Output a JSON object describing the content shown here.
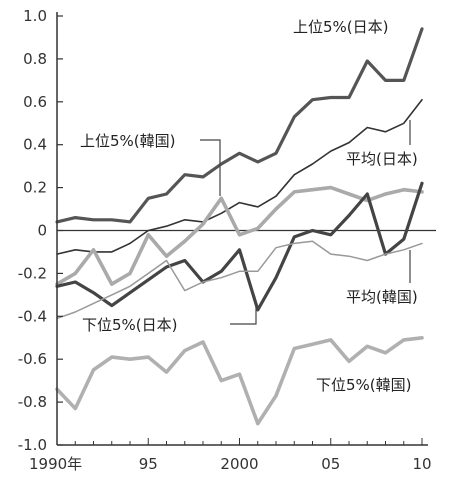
{
  "chart_data": {
    "type": "line",
    "title": "",
    "xlabel": "",
    "ylabel": "",
    "x": [
      1990,
      1991,
      1992,
      1993,
      1994,
      1995,
      1996,
      1997,
      1998,
      1999,
      2000,
      2001,
      2002,
      2003,
      2004,
      2005,
      2006,
      2007,
      2008,
      2009,
      2010
    ],
    "x_ticks": [
      {
        "value": 1990,
        "label": "1990年"
      },
      {
        "value": 1995,
        "label": "95"
      },
      {
        "value": 2000,
        "label": "2000"
      },
      {
        "value": 2005,
        "label": "05"
      },
      {
        "value": 2010,
        "label": "10"
      }
    ],
    "y_ticks": [
      {
        "value": 1.0,
        "label": "1.0"
      },
      {
        "value": 0.8,
        "label": "0.8"
      },
      {
        "value": 0.6,
        "label": "0.6"
      },
      {
        "value": 0.4,
        "label": "0.4"
      },
      {
        "value": 0.2,
        "label": "0.2"
      },
      {
        "value": 0.0,
        "label": "0"
      },
      {
        "value": -0.2,
        "label": "-0.2"
      },
      {
        "value": -0.4,
        "label": "-0.4"
      },
      {
        "value": -0.6,
        "label": "-0.6"
      },
      {
        "value": -0.8,
        "label": "-0.8"
      },
      {
        "value": -1.0,
        "label": "-1.0"
      }
    ],
    "ylim": [
      -1.0,
      1.0
    ],
    "xlim": [
      1990,
      2010
    ],
    "zero_line": true,
    "grid": false,
    "series": [
      {
        "name": "上位5%(日本)",
        "color": "#555555",
        "style": "thick-dark",
        "values": [
          0.04,
          0.06,
          0.05,
          0.05,
          0.04,
          0.15,
          0.17,
          0.26,
          0.25,
          0.31,
          0.36,
          0.32,
          0.36,
          0.53,
          0.61,
          0.62,
          0.62,
          0.79,
          0.7,
          0.7,
          0.94
        ]
      },
      {
        "name": "平均(日本)",
        "color": "#333333",
        "style": "thin-dark",
        "values": [
          -0.11,
          -0.09,
          -0.1,
          -0.1,
          -0.06,
          0.0,
          0.02,
          0.05,
          0.04,
          0.08,
          0.13,
          0.11,
          0.16,
          0.26,
          0.31,
          0.37,
          0.41,
          0.48,
          0.46,
          0.5,
          0.61
        ]
      },
      {
        "name": "上位5%(韓国)",
        "color": "#aaaaaa",
        "style": "thick-light",
        "values": [
          -0.25,
          -0.2,
          -0.09,
          -0.25,
          -0.2,
          -0.02,
          -0.12,
          -0.05,
          0.03,
          0.15,
          -0.02,
          0.01,
          0.1,
          0.18,
          0.19,
          0.2,
          0.17,
          0.14,
          0.17,
          0.19,
          0.18
        ]
      },
      {
        "name": "下位5%(日本)",
        "color": "#444444",
        "style": "thick-dark",
        "values": [
          -0.26,
          -0.24,
          -0.29,
          -0.35,
          -0.29,
          -0.23,
          -0.17,
          -0.14,
          -0.24,
          -0.19,
          -0.09,
          -0.37,
          -0.22,
          -0.03,
          0.0,
          -0.02,
          0.07,
          0.17,
          -0.11,
          -0.04,
          0.22
        ]
      },
      {
        "name": "平均(韓国)",
        "color": "#999999",
        "style": "thin-light",
        "values": [
          -0.41,
          -0.38,
          -0.34,
          -0.3,
          -0.26,
          -0.2,
          -0.14,
          -0.28,
          -0.24,
          -0.22,
          -0.19,
          -0.19,
          -0.08,
          -0.06,
          -0.05,
          -0.11,
          -0.12,
          -0.14,
          -0.11,
          -0.09,
          -0.06
        ]
      },
      {
        "name": "下位5%(韓国)",
        "color": "#b0b0b0",
        "style": "thick-light",
        "values": [
          -0.74,
          -0.83,
          -0.65,
          -0.59,
          -0.6,
          -0.59,
          -0.66,
          -0.56,
          -0.52,
          -0.7,
          -0.67,
          -0.9,
          -0.77,
          -0.55,
          -0.53,
          -0.51,
          -0.61,
          -0.54,
          -0.57,
          -0.51,
          -0.5
        ]
      }
    ]
  }
}
